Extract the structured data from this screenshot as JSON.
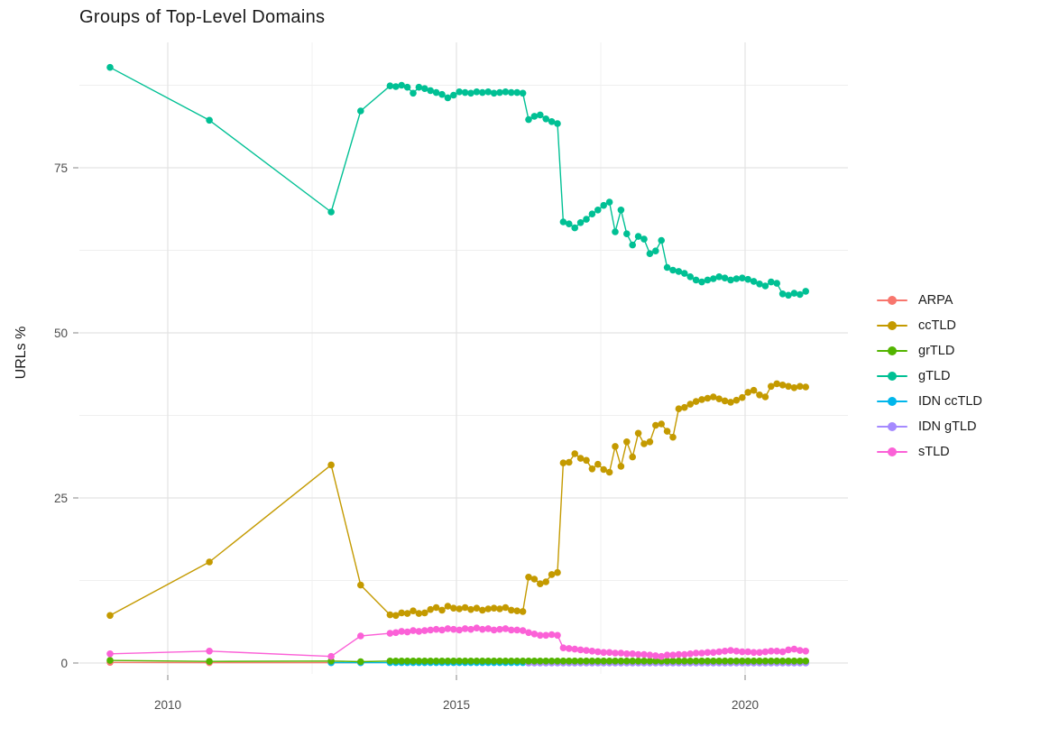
{
  "chart_data": {
    "type": "line",
    "title": "Groups of Top-Level Domains",
    "xlabel": "",
    "ylabel": "URLs %",
    "grid": {
      "major_color": "#e3e3e3",
      "minor_color": "#efefef",
      "grid_on": true
    },
    "axis_text_color": "#4d4d4d",
    "x_axis": {
      "ticks": [
        2010,
        2015,
        2020
      ],
      "minor": [
        2012.5,
        2017.5
      ],
      "range": [
        2008.45,
        2021.8
      ]
    },
    "y_axis": {
      "ticks": [
        0,
        25,
        50,
        75
      ],
      "minor": [
        12.5,
        37.5,
        62.5,
        87.5
      ],
      "range": [
        -1.6,
        94.2
      ]
    },
    "legend_position": "right",
    "x_dense_start": 2013.85,
    "x_dense_step": 0.1,
    "x_dense_count": 73,
    "series": [
      {
        "name": "ARPA",
        "color": "#F8766D",
        "z": 0,
        "sparse": [
          [
            2009.0,
            0.1
          ],
          [
            2010.72,
            0.05
          ],
          [
            2012.83,
            0.05
          ],
          [
            2013.34,
            0.05
          ]
        ]
      },
      {
        "name": "ccTLD",
        "color": "#C49A00",
        "z": 5,
        "sparse": [
          [
            2009.0,
            7.2
          ],
          [
            2010.72,
            15.3
          ],
          [
            2012.83,
            30.0
          ],
          [
            2013.34,
            11.8
          ]
        ],
        "dense": {
          "from": 0,
          "values": [
            7.3,
            7.2,
            7.6,
            7.5,
            7.9,
            7.5,
            7.6,
            8.1,
            8.4,
            8.0,
            8.6,
            8.3,
            8.2,
            8.4,
            8.1,
            8.3,
            8.0,
            8.2,
            8.3,
            8.2,
            8.4,
            8.0,
            7.9,
            7.8,
            13.0,
            12.7,
            12.0,
            12.3,
            13.4,
            13.7,
            30.3,
            30.4,
            31.7,
            31.0,
            30.7,
            29.4,
            30.1,
            29.3,
            28.9,
            32.8,
            29.8,
            33.5,
            31.2,
            34.8,
            33.2,
            33.5,
            36.0,
            36.2,
            35.1,
            34.2,
            38.5,
            38.7,
            39.2,
            39.6,
            39.9,
            40.1,
            40.3,
            40.0,
            39.7,
            39.5,
            39.8,
            40.2,
            41.0,
            41.3,
            40.6,
            40.3,
            41.9,
            42.3,
            42.1,
            41.9,
            41.7,
            41.9,
            41.8
          ]
        }
      },
      {
        "name": "grTLD",
        "color": "#53B400",
        "z": 3,
        "sparse": [
          [
            2009.0,
            0.4
          ],
          [
            2010.72,
            0.25
          ],
          [
            2012.83,
            0.3
          ],
          [
            2013.34,
            0.2
          ]
        ],
        "dense": {
          "from": 0,
          "const": 0.3,
          "count": 73
        }
      },
      {
        "name": "gTLD",
        "color": "#00C094",
        "z": 6,
        "sparse": [
          [
            2009.0,
            90.2
          ],
          [
            2010.72,
            82.2
          ],
          [
            2012.83,
            68.3
          ],
          [
            2013.34,
            83.6
          ]
        ],
        "dense": {
          "from": 0,
          "values": [
            87.4,
            87.3,
            87.5,
            87.2,
            86.3,
            87.2,
            87.0,
            86.7,
            86.4,
            86.1,
            85.6,
            86.0,
            86.5,
            86.4,
            86.3,
            86.5,
            86.4,
            86.5,
            86.3,
            86.4,
            86.5,
            86.4,
            86.4,
            86.3,
            82.3,
            82.8,
            83.0,
            82.4,
            82.0,
            81.7,
            66.8,
            66.5,
            65.9,
            66.7,
            67.2,
            68.0,
            68.6,
            69.3,
            69.8,
            65.3,
            68.6,
            65.0,
            63.3,
            64.6,
            64.2,
            62.0,
            62.4,
            64.0,
            59.9,
            59.5,
            59.3,
            59.0,
            58.5,
            58.0,
            57.7,
            58.0,
            58.2,
            58.5,
            58.3,
            58.0,
            58.2,
            58.3,
            58.1,
            57.8,
            57.4,
            57.1,
            57.7,
            57.5,
            55.9,
            55.7,
            56.0,
            55.8,
            56.3
          ]
        }
      },
      {
        "name": "IDN ccTLD",
        "color": "#00B6EB",
        "z": 1,
        "sparse": [
          [
            2012.83,
            0.05
          ],
          [
            2013.34,
            0.05
          ]
        ],
        "dense": {
          "from": 0,
          "const": 0.05,
          "count": 73
        }
      },
      {
        "name": "IDN gTLD",
        "color": "#A58AFF",
        "z": 2,
        "sparse": [],
        "dense": {
          "from": 24,
          "const": 0.0,
          "count": 49
        }
      },
      {
        "name": "sTLD",
        "color": "#FB61D7",
        "z": 4,
        "sparse": [
          [
            2009.0,
            1.4
          ],
          [
            2010.72,
            1.8
          ],
          [
            2012.83,
            1.0
          ],
          [
            2013.34,
            4.1
          ]
        ],
        "dense": {
          "from": 0,
          "values": [
            4.5,
            4.6,
            4.8,
            4.7,
            4.9,
            4.8,
            4.9,
            5.0,
            5.1,
            5.0,
            5.2,
            5.1,
            5.0,
            5.2,
            5.1,
            5.3,
            5.1,
            5.2,
            5.0,
            5.1,
            5.2,
            5.0,
            5.0,
            4.9,
            4.6,
            4.4,
            4.2,
            4.2,
            4.3,
            4.2,
            2.3,
            2.2,
            2.1,
            2.0,
            1.9,
            1.8,
            1.7,
            1.6,
            1.6,
            1.5,
            1.5,
            1.4,
            1.4,
            1.3,
            1.3,
            1.2,
            1.1,
            1.0,
            1.2,
            1.2,
            1.3,
            1.3,
            1.4,
            1.5,
            1.5,
            1.6,
            1.6,
            1.7,
            1.8,
            1.9,
            1.8,
            1.7,
            1.7,
            1.6,
            1.6,
            1.7,
            1.8,
            1.8,
            1.7,
            2.0,
            2.1,
            1.9,
            1.8
          ]
        }
      }
    ]
  }
}
